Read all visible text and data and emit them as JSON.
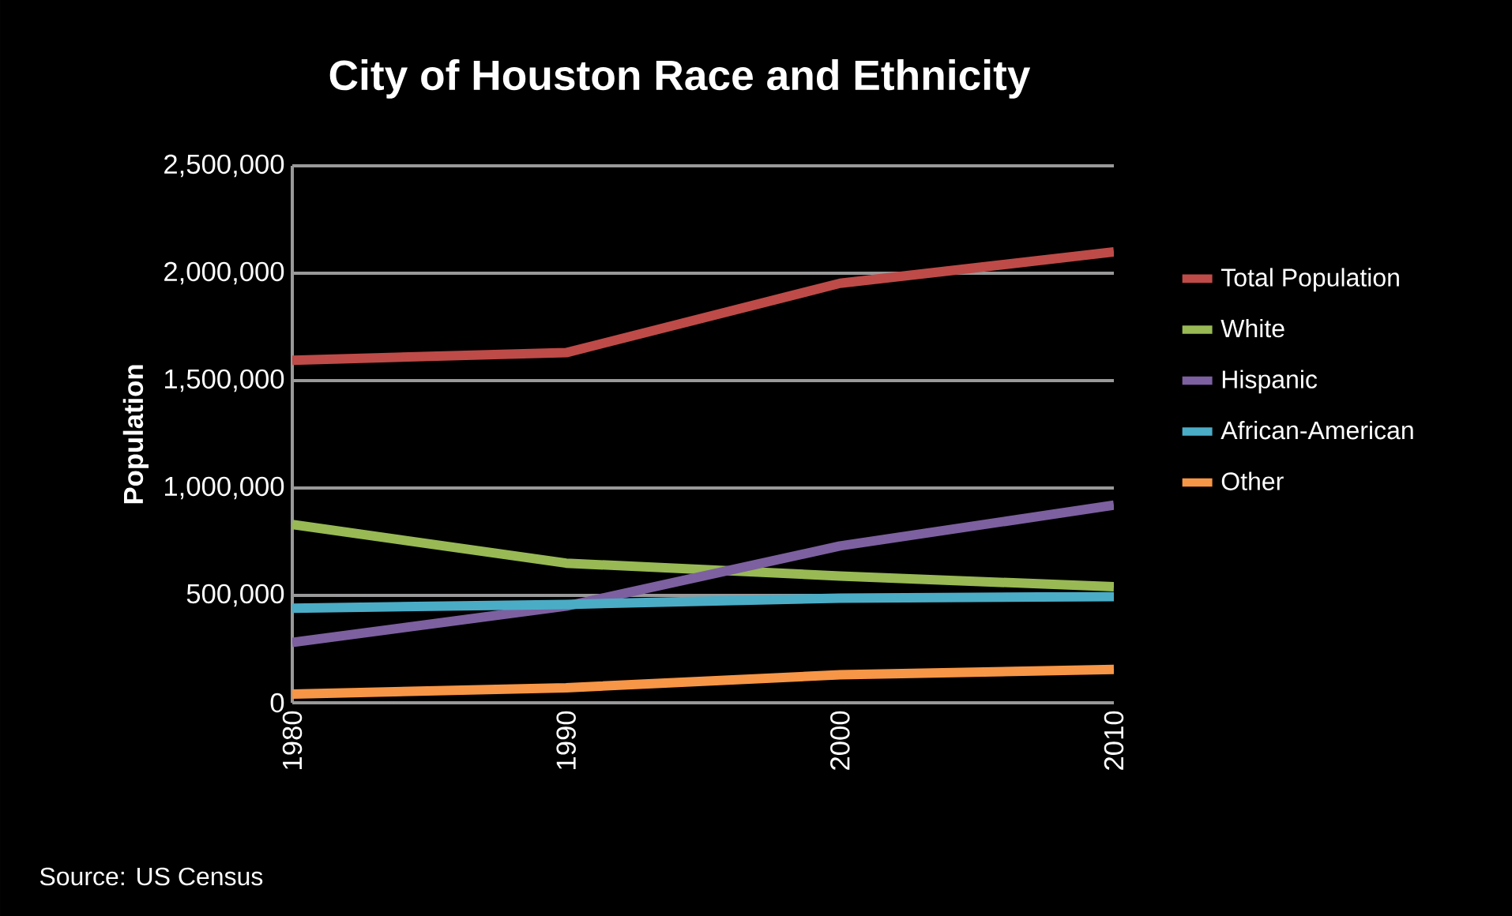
{
  "chart_data": {
    "type": "line",
    "title": "City of Houston Race and Ethnicity",
    "ylabel": "Population",
    "categories": [
      "1980",
      "1990",
      "2000",
      "2010"
    ],
    "series": [
      {
        "name": "Total Population",
        "color": "#be4b48",
        "values": [
          1595000,
          1630000,
          1953000,
          2099000
        ]
      },
      {
        "name": "White",
        "color": "#98b954",
        "values": [
          830000,
          650000,
          590000,
          540000
        ]
      },
      {
        "name": "Hispanic",
        "color": "#7d60a0",
        "values": [
          281000,
          450000,
          730000,
          920000
        ]
      },
      {
        "name": "African-American",
        "color": "#4bacc6",
        "values": [
          440000,
          458000,
          487000,
          494000
        ]
      },
      {
        "name": "Other",
        "color": "#f79646",
        "values": [
          40000,
          70000,
          130000,
          155000
        ]
      }
    ],
    "ylim": [
      0,
      2500000
    ],
    "yticks": [
      0,
      {
        "value": 500000,
        "label": "500,000"
      },
      {
        "value": 1000000,
        "label": "1,000,000"
      },
      {
        "value": 1500000,
        "label": "1,500,000"
      },
      {
        "value": 2000000,
        "label": "2,000,000"
      },
      {
        "value": 2500000,
        "label": "2,500,000"
      }
    ],
    "grid": "y",
    "legend": "right",
    "marker": "none",
    "line_style": "solid",
    "annotations": [
      "Source: US Census"
    ]
  }
}
